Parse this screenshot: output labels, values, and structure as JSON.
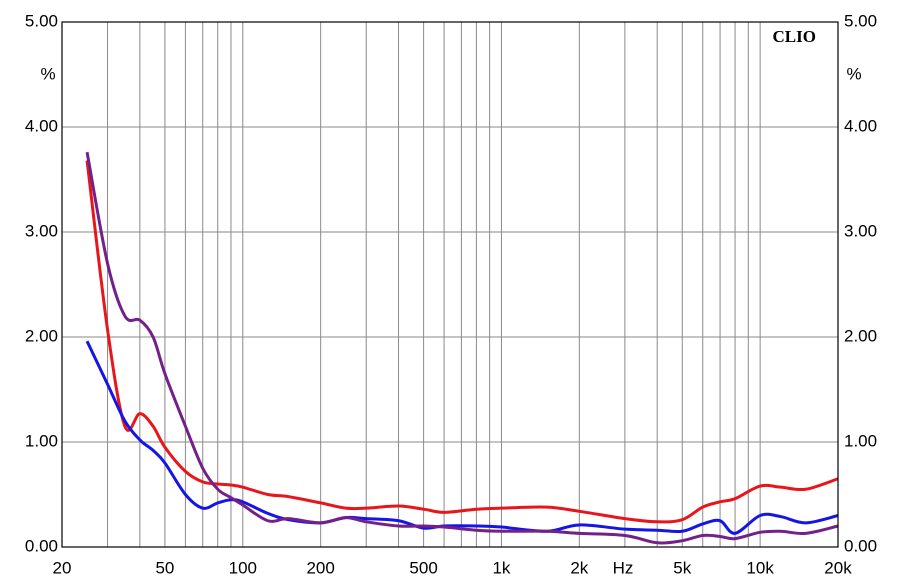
{
  "chart_data": {
    "type": "line",
    "unit_left": "%",
    "unit_right": "%",
    "x_unit": "Hz",
    "brand": "CLIO",
    "log_x": true,
    "grid": true,
    "xlim": [
      20,
      20000
    ],
    "ylim": [
      0,
      5
    ],
    "xticks": [
      20,
      50,
      100,
      200,
      500,
      {
        "value": 1000,
        "label": "1k"
      },
      {
        "value": 2000,
        "label": "2k"
      },
      {
        "value": 5000,
        "label": "5k"
      },
      {
        "value": 10000,
        "label": "10k"
      },
      {
        "value": 20000,
        "label": "20k"
      }
    ],
    "xgrid": [
      30,
      40,
      60,
      70,
      80,
      90,
      300,
      400,
      600,
      700,
      800,
      900,
      3000,
      4000,
      6000,
      7000,
      8000,
      9000
    ],
    "yticks": [
      {
        "value": 0,
        "label": "0.00"
      },
      {
        "value": 1,
        "label": "1.00"
      },
      {
        "value": 2,
        "label": "2.00"
      },
      {
        "value": 3,
        "label": "3.00"
      },
      {
        "value": 4,
        "label": "4.00"
      },
      {
        "value": 5,
        "label": "5.00"
      }
    ],
    "x": [
      25,
      30,
      35,
      40,
      45,
      50,
      60,
      70,
      80,
      90,
      100,
      125,
      150,
      200,
      250,
      300,
      400,
      500,
      600,
      800,
      1000,
      1500,
      2000,
      3000,
      4000,
      5000,
      6000,
      7000,
      8000,
      10000,
      12000,
      15000,
      20000
    ],
    "series": [
      {
        "color": "#e8161b",
        "values": [
          3.68,
          2.07,
          1.15,
          1.27,
          1.15,
          0.95,
          0.72,
          0.62,
          0.6,
          0.59,
          0.57,
          0.5,
          0.48,
          0.42,
          0.37,
          0.37,
          0.39,
          0.36,
          0.33,
          0.36,
          0.37,
          0.38,
          0.34,
          0.27,
          0.24,
          0.26,
          0.38,
          0.43,
          0.46,
          0.58,
          0.57,
          0.55,
          0.65
        ]
      },
      {
        "color": "#1515e6",
        "values": [
          1.96,
          1.55,
          1.2,
          1.02,
          0.92,
          0.8,
          0.5,
          0.37,
          0.42,
          0.45,
          0.43,
          0.32,
          0.26,
          0.23,
          0.28,
          0.27,
          0.25,
          0.18,
          0.2,
          0.2,
          0.19,
          0.15,
          0.21,
          0.17,
          0.16,
          0.15,
          0.22,
          0.25,
          0.13,
          0.3,
          0.29,
          0.23,
          0.3
        ]
      },
      {
        "color": "#74208a",
        "values": [
          3.76,
          2.7,
          2.2,
          2.16,
          2.0,
          1.65,
          1.15,
          0.75,
          0.55,
          0.47,
          0.4,
          0.25,
          0.27,
          0.23,
          0.28,
          0.24,
          0.2,
          0.2,
          0.19,
          0.16,
          0.15,
          0.15,
          0.13,
          0.11,
          0.04,
          0.06,
          0.11,
          0.1,
          0.08,
          0.14,
          0.15,
          0.13,
          0.2
        ]
      }
    ]
  }
}
